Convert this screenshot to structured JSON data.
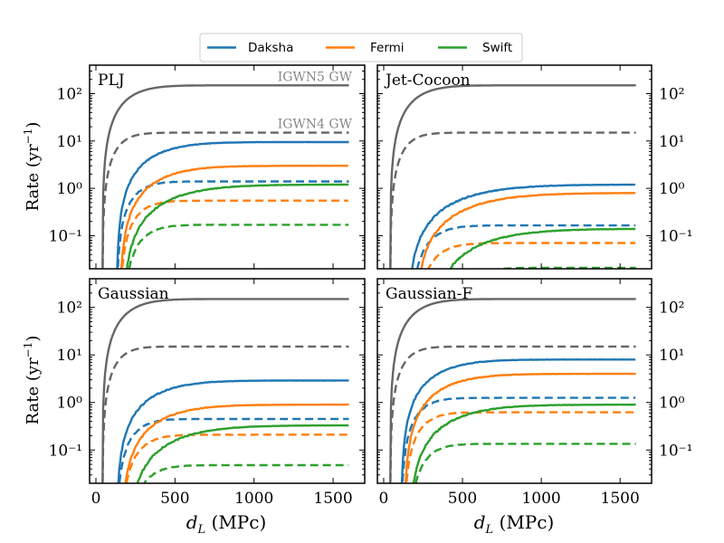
{
  "figure": {
    "x_axis_label": "d_L (MPc)",
    "y_axis_label": "Rate (yr⁻¹)"
  },
  "legend": {
    "items": [
      {
        "label": "Daksha",
        "color": "#1f77b4"
      },
      {
        "label": "Fermi",
        "color": "#ff7f0e"
      },
      {
        "label": "Swift",
        "color": "#2ca02c"
      }
    ]
  },
  "chart_data": {
    "type": "line",
    "x_ticks": [
      0,
      500,
      1000,
      1500
    ],
    "x_tick_labels": [
      "0",
      "500",
      "1000",
      "1500"
    ],
    "xlim": [
      -40,
      1700
    ],
    "y_scale": "log",
    "ylim": [
      0.02,
      400
    ],
    "y_ticks": [
      0.1,
      1,
      10,
      100
    ],
    "y_tick_labels": [
      "10⁻¹",
      "10⁰",
      "10¹",
      "10²"
    ],
    "line_styles": {
      "solid": "IGWN5 GW",
      "dashed": "IGWN4 GW"
    },
    "annotations": [
      {
        "text": "IGWN5 GW",
        "panel": "PLJ"
      },
      {
        "text": "IGWN4 GW",
        "panel": "PLJ"
      }
    ],
    "panels": [
      {
        "title": "PLJ",
        "series": [
          {
            "name": "GW IGWN5",
            "color": "#666666",
            "style": "solid",
            "d0": 40,
            "sat": 150,
            "scale": 200
          },
          {
            "name": "GW IGWN4",
            "color": "#666666",
            "style": "dashed",
            "d0": 40,
            "sat": 15,
            "scale": 130
          },
          {
            "name": "Daksha IGWN5",
            "color": "#1f77b4",
            "style": "solid",
            "d0": 130,
            "sat": 9.5,
            "scale": 300
          },
          {
            "name": "Daksha IGWN4",
            "color": "#1f77b4",
            "style": "dashed",
            "d0": 130,
            "sat": 1.4,
            "scale": 150
          },
          {
            "name": "Fermi IGWN5",
            "color": "#ff7f0e",
            "style": "solid",
            "d0": 150,
            "sat": 3.0,
            "scale": 320
          },
          {
            "name": "Fermi IGWN4",
            "color": "#ff7f0e",
            "style": "dashed",
            "d0": 150,
            "sat": 0.55,
            "scale": 150
          },
          {
            "name": "Swift IGWN5",
            "color": "#2ca02c",
            "style": "solid",
            "d0": 170,
            "sat": 1.2,
            "scale": 400
          },
          {
            "name": "Swift IGWN4",
            "color": "#2ca02c",
            "style": "dashed",
            "d0": 170,
            "sat": 0.17,
            "scale": 160
          }
        ]
      },
      {
        "title": "Jet-Cocoon",
        "series": [
          {
            "name": "GW IGWN5",
            "color": "#666666",
            "style": "solid",
            "d0": 40,
            "sat": 150,
            "scale": 200
          },
          {
            "name": "GW IGWN4",
            "color": "#666666",
            "style": "dashed",
            "d0": 40,
            "sat": 15,
            "scale": 130
          },
          {
            "name": "Daksha IGWN5",
            "color": "#1f77b4",
            "style": "solid",
            "d0": 150,
            "sat": 1.2,
            "scale": 450
          },
          {
            "name": "Daksha IGWN4",
            "color": "#1f77b4",
            "style": "dashed",
            "d0": 170,
            "sat": 0.165,
            "scale": 170
          },
          {
            "name": "Fermi IGWN5",
            "color": "#ff7f0e",
            "style": "solid",
            "d0": 200,
            "sat": 0.8,
            "scale": 450
          },
          {
            "name": "Fermi IGWN4",
            "color": "#ff7f0e",
            "style": "dashed",
            "d0": 200,
            "sat": 0.07,
            "scale": 170
          },
          {
            "name": "Swift IGWN5",
            "color": "#2ca02c",
            "style": "solid",
            "d0": 290,
            "sat": 0.14,
            "scale": 450
          },
          {
            "name": "Swift IGWN4",
            "color": "#2ca02c",
            "style": "dashed",
            "d0": 400,
            "sat": 0.021,
            "scale": 170
          }
        ]
      },
      {
        "title": "Gaussian",
        "series": [
          {
            "name": "GW IGWN5",
            "color": "#666666",
            "style": "solid",
            "d0": 40,
            "sat": 150,
            "scale": 200
          },
          {
            "name": "GW IGWN4",
            "color": "#666666",
            "style": "dashed",
            "d0": 40,
            "sat": 15,
            "scale": 130
          },
          {
            "name": "Daksha IGWN5",
            "color": "#1f77b4",
            "style": "solid",
            "d0": 130,
            "sat": 2.9,
            "scale": 320
          },
          {
            "name": "Daksha IGWN4",
            "color": "#1f77b4",
            "style": "dashed",
            "d0": 130,
            "sat": 0.45,
            "scale": 150
          },
          {
            "name": "Fermi IGWN5",
            "color": "#ff7f0e",
            "style": "solid",
            "d0": 160,
            "sat": 0.9,
            "scale": 340
          },
          {
            "name": "Fermi IGWN4",
            "color": "#ff7f0e",
            "style": "dashed",
            "d0": 160,
            "sat": 0.21,
            "scale": 160
          },
          {
            "name": "Swift IGWN5",
            "color": "#2ca02c",
            "style": "solid",
            "d0": 200,
            "sat": 0.33,
            "scale": 400
          },
          {
            "name": "Swift IGWN4",
            "color": "#2ca02c",
            "style": "dashed",
            "d0": 200,
            "sat": 0.048,
            "scale": 160
          }
        ]
      },
      {
        "title": "Gaussian-F",
        "series": [
          {
            "name": "GW IGWN5",
            "color": "#666666",
            "style": "solid",
            "d0": 40,
            "sat": 150,
            "scale": 200
          },
          {
            "name": "GW IGWN4",
            "color": "#666666",
            "style": "dashed",
            "d0": 40,
            "sat": 15,
            "scale": 130
          },
          {
            "name": "Daksha IGWN5",
            "color": "#1f77b4",
            "style": "solid",
            "d0": 110,
            "sat": 8.0,
            "scale": 300
          },
          {
            "name": "Daksha IGWN4",
            "color": "#1f77b4",
            "style": "dashed",
            "d0": 110,
            "sat": 1.25,
            "scale": 150
          },
          {
            "name": "Fermi IGWN5",
            "color": "#ff7f0e",
            "style": "solid",
            "d0": 130,
            "sat": 4.0,
            "scale": 320
          },
          {
            "name": "Fermi IGWN4",
            "color": "#ff7f0e",
            "style": "dashed",
            "d0": 130,
            "sat": 0.62,
            "scale": 150
          },
          {
            "name": "Swift IGWN5",
            "color": "#2ca02c",
            "style": "solid",
            "d0": 160,
            "sat": 0.9,
            "scale": 380
          },
          {
            "name": "Swift IGWN4",
            "color": "#2ca02c",
            "style": "dashed",
            "d0": 160,
            "sat": 0.135,
            "scale": 150
          }
        ]
      }
    ]
  }
}
